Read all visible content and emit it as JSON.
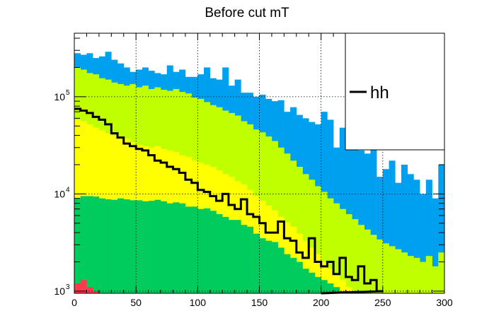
{
  "chart_data": {
    "type": "histogram",
    "title": "Before cut mT",
    "xlabel": "",
    "ylabel": "",
    "xlim": [
      0,
      300
    ],
    "ylim": [
      950,
      450000
    ],
    "log_y": true,
    "grid": true,
    "bin_width": 5,
    "x_ticks": [
      {
        "value": 0,
        "label": "0"
      },
      {
        "value": 50,
        "label": "50"
      },
      {
        "value": 100,
        "label": "100"
      },
      {
        "value": 150,
        "label": "150"
      },
      {
        "value": 200,
        "label": "200"
      },
      {
        "value": 250,
        "label": "250"
      },
      {
        "value": 300,
        "label": "300"
      }
    ],
    "y_ticks": [
      {
        "value": 1000,
        "base": "10",
        "exp": "3"
      },
      {
        "value": 10000,
        "base": "10",
        "exp": "4"
      },
      {
        "value": 100000,
        "base": "10",
        "exp": "5"
      }
    ],
    "legend": {
      "position": "top-right",
      "entries": [
        {
          "label": "hh",
          "color": "#000000"
        }
      ]
    },
    "stacked_series": [
      {
        "color": "#00a0f0",
        "values": [
          280000,
          270000,
          280000,
          250000,
          260000,
          290000,
          240000,
          220000,
          200000,
          180000,
          190000,
          200000,
          185000,
          175000,
          170000,
          210000,
          180000,
          190000,
          160000,
          160000,
          170000,
          200000,
          155000,
          150000,
          200000,
          130000,
          150000,
          110000,
          110000,
          100000,
          105000,
          95000,
          90000,
          92000,
          70000,
          78000,
          65000,
          60000,
          55000,
          52000,
          70000,
          58000,
          30000,
          48000,
          50000,
          55000,
          28000,
          26000,
          60000,
          15000,
          18000,
          22000,
          13000,
          20000,
          16000,
          14000,
          10000,
          14000,
          9000,
          20000
        ]
      },
      {
        "color": "#c0ff00",
        "values": [
          200000,
          190000,
          175000,
          170000,
          155000,
          150000,
          140000,
          135000,
          130000,
          135000,
          125000,
          130000,
          120000,
          125000,
          118000,
          115000,
          120000,
          112000,
          108000,
          98000,
          95000,
          88000,
          82000,
          78000,
          72000,
          68000,
          64000,
          56000,
          52000,
          46000,
          43000,
          39000,
          35000,
          30000,
          26000,
          22000,
          19000,
          16000,
          14000,
          12000,
          10500,
          9000,
          8000,
          7000,
          6200,
          5500,
          4800,
          4300,
          3800,
          3400,
          3100,
          2900,
          2700,
          2500,
          2300,
          2200,
          2000,
          2300,
          1800,
          2500
        ]
      },
      {
        "color": "#ffff00",
        "values": [
          58000,
          56000,
          52000,
          48000,
          45000,
          42000,
          40000,
          39000,
          37000,
          34000,
          32000,
          31000,
          30000,
          31000,
          29000,
          28000,
          27000,
          25000,
          24000,
          22000,
          21000,
          20000,
          19000,
          17500,
          16000,
          15000,
          13500,
          12500,
          11000,
          9500,
          8500,
          7600,
          6800,
          5800,
          5100,
          4600,
          3900,
          3300,
          2800,
          2400,
          2000,
          1700,
          1500,
          1300,
          1100,
          1000,
          950,
          950,
          950,
          950,
          950,
          950,
          950,
          950,
          950,
          950,
          950,
          950,
          950,
          950
        ]
      },
      {
        "color": "#00cc5e",
        "values": [
          9000,
          9500,
          9500,
          9400,
          9000,
          8800,
          8700,
          9000,
          8800,
          8600,
          8600,
          8400,
          8500,
          8700,
          8400,
          8000,
          8200,
          8000,
          7400,
          7400,
          7000,
          7100,
          6700,
          6200,
          5800,
          5400,
          5400,
          4800,
          4600,
          3900,
          3500,
          3300,
          3200,
          2800,
          2400,
          2200,
          2000,
          1700,
          1550,
          1400,
          1300,
          1200,
          1100,
          1000,
          950,
          950,
          950,
          950,
          950,
          950,
          950,
          950,
          950,
          950,
          950,
          950,
          950,
          950,
          950,
          950
        ]
      },
      {
        "color": "#ff3a4c",
        "values": [
          1200,
          1300,
          1100,
          1000,
          950,
          950,
          950,
          950,
          950,
          950,
          950,
          950,
          950,
          950,
          950,
          950,
          950,
          950,
          950,
          950,
          950,
          950,
          950,
          950,
          950,
          950,
          950,
          950,
          950,
          950,
          950,
          950,
          950,
          950,
          950,
          950,
          950,
          950,
          950,
          950,
          950,
          950,
          950,
          950,
          950,
          950,
          950,
          950,
          950,
          950,
          950,
          950,
          950,
          950,
          950,
          950,
          950,
          950,
          950,
          950
        ]
      }
    ],
    "line_series": {
      "name": "hh",
      "color": "#000000",
      "x_edges_end": 200,
      "values": [
        75000,
        72000,
        68000,
        62000,
        58000,
        52000,
        42000,
        38000,
        33000,
        31000,
        29000,
        28000,
        25000,
        22000,
        21000,
        19000,
        18000,
        16500,
        14000,
        13000,
        11000,
        10500,
        9500,
        8500,
        10000,
        7700,
        7000,
        8800,
        6200,
        5800,
        5000,
        4000,
        4000,
        5200,
        3500,
        3300,
        2500,
        2200,
        3500,
        2000,
        1800,
        2000,
        1500,
        2200,
        1400,
        1300,
        1800,
        1200,
        1300,
        1000
      ]
    }
  }
}
